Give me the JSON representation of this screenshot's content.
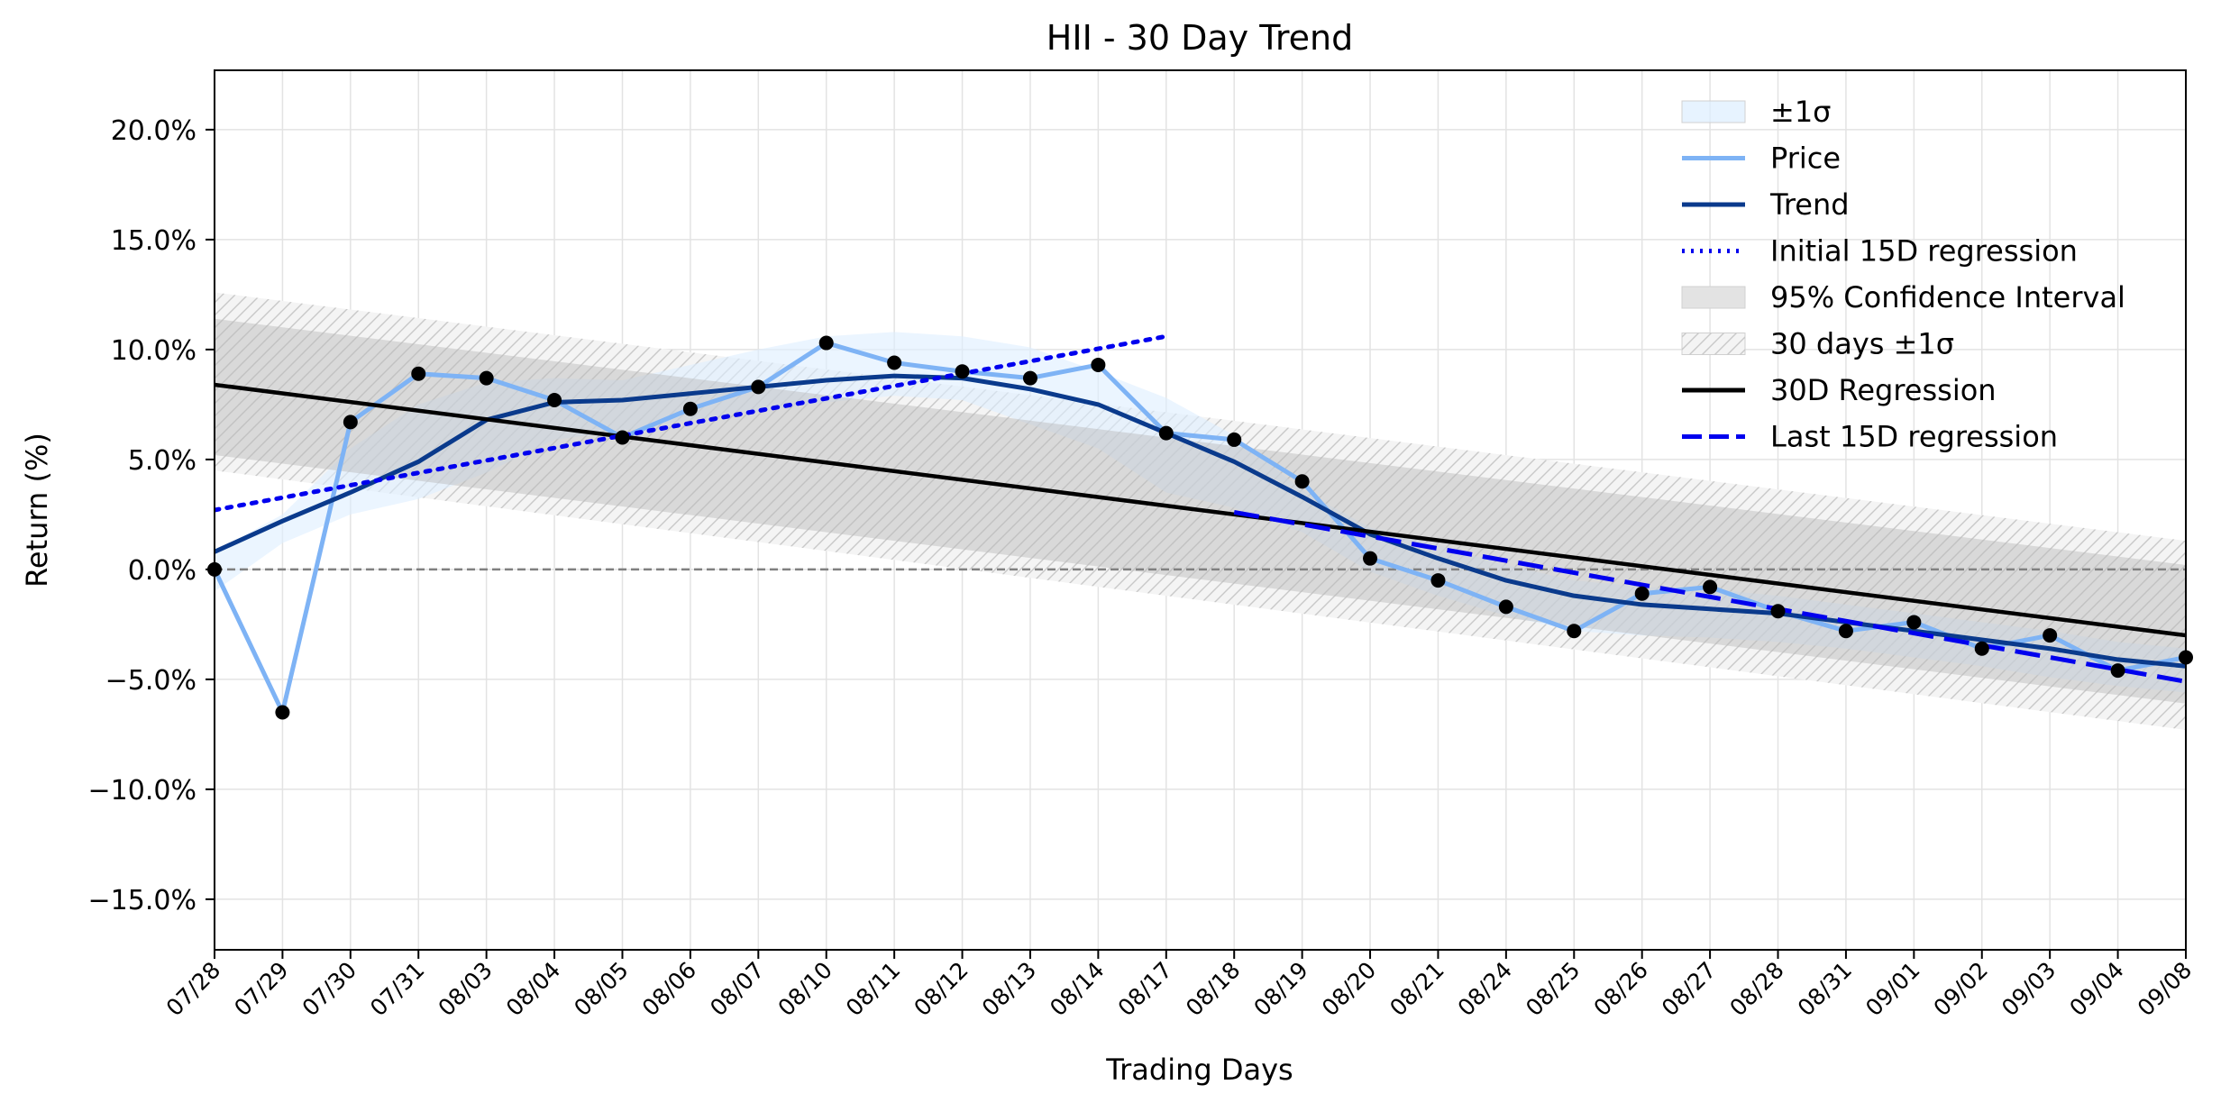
{
  "chart_data": {
    "type": "line",
    "title": "HII - 30 Day Trend",
    "xlabel": "Trading Days",
    "ylabel": "Return (%)",
    "ylim": [
      -17.3,
      22.7
    ],
    "yticks": [
      20,
      15,
      10,
      5,
      0,
      -5,
      -10,
      -15
    ],
    "ytick_labels": [
      "20.0%",
      "15.0%",
      "10.0%",
      "5.0%",
      "0.0%",
      "−5.0%",
      "−10.0%",
      "−15.0%"
    ],
    "grid": true,
    "legend_position": "top-right",
    "categories": [
      "07/28",
      "07/29",
      "07/30",
      "07/31",
      "08/03",
      "08/04",
      "08/05",
      "08/06",
      "08/07",
      "08/10",
      "08/11",
      "08/12",
      "08/13",
      "08/14",
      "08/17",
      "08/18",
      "08/19",
      "08/20",
      "08/21",
      "08/24",
      "08/25",
      "08/26",
      "08/27",
      "08/28",
      "08/31",
      "09/01",
      "09/02",
      "09/03",
      "09/04",
      "09/08"
    ],
    "series": [
      {
        "name": "Price",
        "color": "#7eb3f5",
        "values": [
          0.0,
          -6.5,
          6.7,
          8.9,
          8.7,
          7.7,
          6.0,
          7.3,
          8.3,
          10.3,
          9.4,
          9.0,
          8.7,
          9.3,
          6.2,
          5.9,
          4.0,
          0.5,
          -0.5,
          -1.7,
          -2.8,
          -1.1,
          -0.8,
          -1.9,
          -2.8,
          -2.4,
          -3.6,
          -3.0,
          -4.6,
          -4.0
        ]
      },
      {
        "name": "Trend",
        "color": "#0a3a8c",
        "values": [
          0.8,
          2.2,
          3.5,
          4.9,
          6.8,
          7.6,
          7.7,
          8.0,
          8.3,
          8.6,
          8.8,
          8.7,
          8.2,
          7.5,
          6.2,
          4.9,
          3.3,
          1.6,
          0.5,
          -0.5,
          -1.2,
          -1.6,
          -1.8,
          -2.0,
          -2.4,
          -2.8,
          -3.2,
          -3.6,
          -4.1,
          -4.4
        ]
      }
    ],
    "sigma_band": {
      "name": "±1σ",
      "color": "#ddeeff",
      "upper": [
        0.8,
        2.5,
        5.5,
        7.5,
        8.5,
        8.7,
        8.6,
        9.3,
        10.0,
        10.6,
        10.8,
        10.6,
        10.1,
        9.0,
        7.8,
        6.1,
        3.6,
        1.9,
        1.1,
        0.2,
        -0.5,
        -0.8,
        -0.9,
        -1.2,
        -1.6,
        -2.0,
        -2.4,
        -2.8,
        -3.3,
        -3.6
      ],
      "lower": [
        -1.0,
        1.2,
        2.5,
        3.2,
        4.4,
        5.9,
        6.3,
        6.8,
        7.2,
        7.6,
        7.9,
        7.7,
        6.6,
        5.5,
        3.5,
        2.8,
        1.7,
        -0.1,
        -1.2,
        -2.1,
        -2.8,
        -3.0,
        -3.1,
        -3.3,
        -3.6,
        -4.0,
        -4.4,
        -4.9,
        -5.3,
        -5.6
      ]
    },
    "regression_30d": {
      "name": "30D Regression",
      "color": "#000000",
      "x": [
        "07/28",
        "09/08"
      ],
      "y": [
        8.4,
        -3.0
      ]
    },
    "confidence_interval_95": {
      "name": "95% Confidence Interval",
      "color": "#cccccc",
      "upper": [
        11.4,
        0.2
      ],
      "lower": [
        5.2,
        -6.1
      ]
    },
    "band_30d_sigma": {
      "name": "30 days ±1σ",
      "color": "#eeeeee",
      "upper": [
        12.6,
        1.3
      ],
      "lower": [
        4.5,
        -7.3
      ]
    },
    "initial_15d_regression": {
      "name": "Initial 15D regression",
      "color": "#0000ee",
      "x": [
        "07/28",
        "08/17"
      ],
      "y": [
        2.7,
        10.6
      ]
    },
    "last_15d_regression": {
      "name": "Last 15D regression",
      "color": "#0000ee",
      "x": [
        "08/18",
        "09/08"
      ],
      "y": [
        2.6,
        -5.1
      ]
    },
    "zero_line": {
      "y": 0,
      "color": "#808080",
      "style": "dashed"
    }
  }
}
